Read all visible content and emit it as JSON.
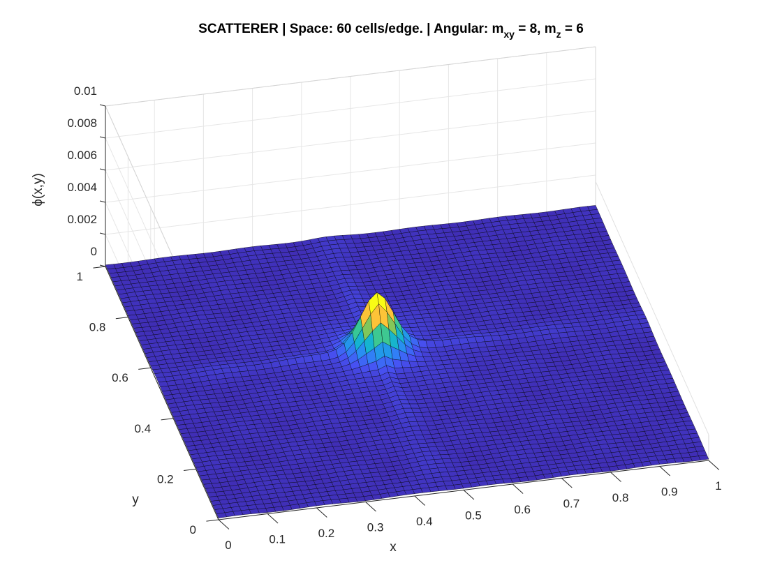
{
  "chart_data": {
    "type": "surface",
    "title": {
      "prefix": "SCATTERER | Space: 60 cells/edge. | Angular: m",
      "sub1": "xy",
      "mid": " = 8, m",
      "sub2": "z",
      "suffix": " = 6"
    },
    "xlabel": "x",
    "ylabel": "y",
    "zlabel": "ϕ(x,y)",
    "xlim": [
      0,
      1
    ],
    "ylim": [
      0,
      1
    ],
    "zlim": [
      0,
      0.01
    ],
    "x_ticks": [
      "0",
      "0.1",
      "0.2",
      "0.3",
      "0.4",
      "0.5",
      "0.6",
      "0.7",
      "0.8",
      "0.9",
      "1"
    ],
    "y_ticks": [
      "0",
      "0.2",
      "0.4",
      "0.6",
      "0.8",
      "1"
    ],
    "z_ticks": [
      "0",
      "0.002",
      "0.004",
      "0.006",
      "0.008",
      "0.01"
    ],
    "grid": true,
    "colormap": "parula",
    "cells_per_edge": 60,
    "peak": {
      "x": 0.45,
      "y": 0.55,
      "phi": 0.0031
    },
    "background_phi": 0.0001,
    "colors": {
      "mesh_edge": "#000000",
      "axis": "#262626",
      "grid": "#e6e6e6"
    }
  }
}
